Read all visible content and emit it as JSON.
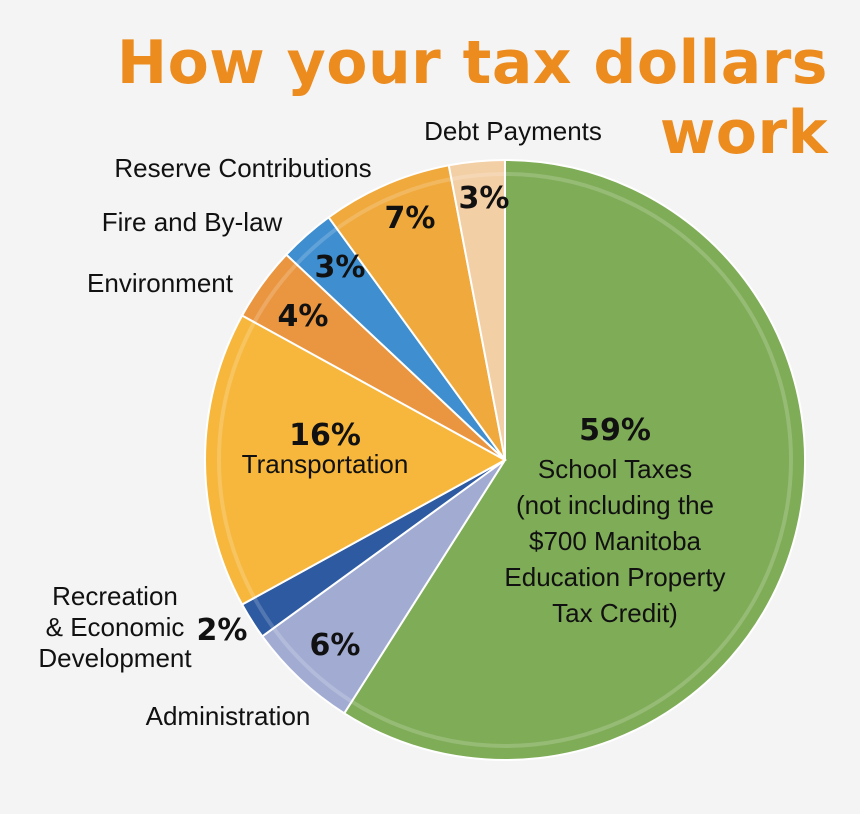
{
  "title": "How your tax dollars work",
  "chart_data": {
    "type": "pie",
    "title": "How your tax dollars work",
    "slices": [
      {
        "label_lines": [
          "School Taxes",
          "(not including the",
          "$700 Manitoba",
          "Education Property",
          "Tax Credit)"
        ],
        "percent_label": "59%",
        "value": 59,
        "color": "#7fac57"
      },
      {
        "label_lines": [
          "Administration"
        ],
        "percent_label": "6%",
        "value": 6,
        "color": "#a2acd2"
      },
      {
        "label_lines": [
          "Recreation",
          "& Economic",
          "Development"
        ],
        "percent_label": "2%",
        "value": 2,
        "color": "#2d5aa0"
      },
      {
        "label_lines": [
          "Transportation"
        ],
        "percent_label": "16%",
        "value": 16,
        "color": "#f6b73c"
      },
      {
        "label_lines": [
          "Environment"
        ],
        "percent_label": "4%",
        "value": 4,
        "color": "#ea9540"
      },
      {
        "label_lines": [
          "Fire and By-law"
        ],
        "percent_label": "3%",
        "value": 3,
        "color": "#3f8ed0"
      },
      {
        "label_lines": [
          "Reserve Contributions"
        ],
        "percent_label": "7%",
        "value": 7,
        "color": "#f0a93c"
      },
      {
        "label_lines": [
          "Debt Payments"
        ],
        "percent_label": "3%",
        "value": 3,
        "color": "#f3cfa5"
      }
    ]
  }
}
